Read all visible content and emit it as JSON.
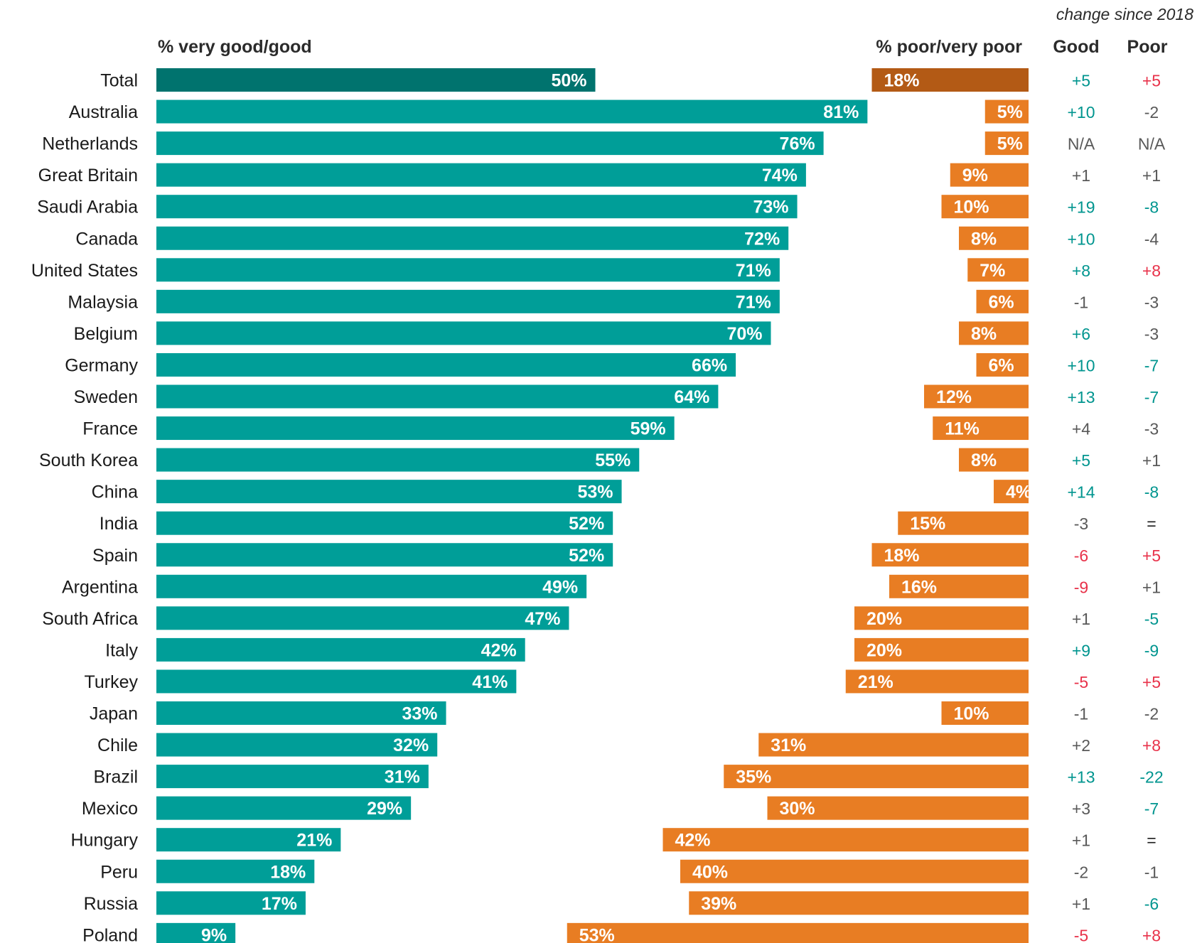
{
  "chart_data": {
    "type": "bar",
    "note": "change since 2018",
    "good_header": "% very good/good",
    "poor_header": "% poor/very poor",
    "change_headers": [
      "Good",
      "Poor"
    ],
    "colors": {
      "good": "#009e98",
      "good_total": "#00736e",
      "poor": "#e87d23",
      "poor_total": "#b35a15",
      "positive_change": "#00958f",
      "negative_change": "#e8324a",
      "neutral_change": "#595959"
    },
    "rows": [
      {
        "country": "Total",
        "good": 50,
        "poor": 18,
        "good_change": "+5",
        "poor_change": "+5"
      },
      {
        "country": "Australia",
        "good": 81,
        "poor": 5,
        "good_change": "+10",
        "poor_change": "-2"
      },
      {
        "country": "Netherlands",
        "good": 76,
        "poor": 5,
        "good_change": "N/A",
        "poor_change": "N/A"
      },
      {
        "country": "Great Britain",
        "good": 74,
        "poor": 9,
        "good_change": "+1",
        "poor_change": "+1"
      },
      {
        "country": "Saudi Arabia",
        "good": 73,
        "poor": 10,
        "good_change": "+19",
        "poor_change": "-8"
      },
      {
        "country": "Canada",
        "good": 72,
        "poor": 8,
        "good_change": "+10",
        "poor_change": "-4"
      },
      {
        "country": "United States",
        "good": 71,
        "poor": 7,
        "good_change": "+8",
        "poor_change": "+8"
      },
      {
        "country": "Malaysia",
        "good": 71,
        "poor": 6,
        "good_change": "-1",
        "poor_change": "-3"
      },
      {
        "country": "Belgium",
        "good": 70,
        "poor": 8,
        "good_change": "+6",
        "poor_change": "-3"
      },
      {
        "country": "Germany",
        "good": 66,
        "poor": 6,
        "good_change": "+10",
        "poor_change": "-7"
      },
      {
        "country": "Sweden",
        "good": 64,
        "poor": 12,
        "good_change": "+13",
        "poor_change": "-7"
      },
      {
        "country": "France",
        "good": 59,
        "poor": 11,
        "good_change": "+4",
        "poor_change": "-3"
      },
      {
        "country": "South Korea",
        "good": 55,
        "poor": 8,
        "good_change": "+5",
        "poor_change": "+1"
      },
      {
        "country": "China",
        "good": 53,
        "poor": 4,
        "good_change": "+14",
        "poor_change": "-8"
      },
      {
        "country": "India",
        "good": 52,
        "poor": 15,
        "good_change": "-3",
        "poor_change": "="
      },
      {
        "country": "Spain",
        "good": 52,
        "poor": 18,
        "good_change": "-6",
        "poor_change": "+5"
      },
      {
        "country": "Argentina",
        "good": 49,
        "poor": 16,
        "good_change": "-9",
        "poor_change": "+1"
      },
      {
        "country": "South Africa",
        "good": 47,
        "poor": 20,
        "good_change": "+1",
        "poor_change": "-5"
      },
      {
        "country": "Italy",
        "good": 42,
        "poor": 20,
        "good_change": "+9",
        "poor_change": "-9"
      },
      {
        "country": "Turkey",
        "good": 41,
        "poor": 21,
        "good_change": "-5",
        "poor_change": "+5"
      },
      {
        "country": "Japan",
        "good": 33,
        "poor": 10,
        "good_change": "-1",
        "poor_change": "-2"
      },
      {
        "country": "Chile",
        "good": 32,
        "poor": 31,
        "good_change": "+2",
        "poor_change": "+8"
      },
      {
        "country": "Brazil",
        "good": 31,
        "poor": 35,
        "good_change": "+13",
        "poor_change": "-22"
      },
      {
        "country": "Mexico",
        "good": 29,
        "poor": 30,
        "good_change": "+3",
        "poor_change": "-7"
      },
      {
        "country": "Hungary",
        "good": 21,
        "poor": 42,
        "good_change": "+1",
        "poor_change": "="
      },
      {
        "country": "Peru",
        "good": 18,
        "poor": 40,
        "good_change": "-2",
        "poor_change": "-1"
      },
      {
        "country": "Russia",
        "good": 17,
        "poor": 39,
        "good_change": "+1",
        "poor_change": "-6"
      },
      {
        "country": "Poland",
        "good": 9,
        "poor": 53,
        "good_change": "-5",
        "poor_change": "+8"
      }
    ]
  }
}
